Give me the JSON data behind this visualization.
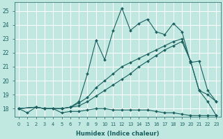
{
  "xlabel": "Humidex (Indice chaleur)",
  "bg_color": "#c0e8e0",
  "grid_color": "#ffffff",
  "line_color": "#1a6060",
  "xlim": [
    -0.5,
    23.5
  ],
  "ylim": [
    17.4,
    25.6
  ],
  "yticks": [
    18,
    19,
    20,
    21,
    22,
    23,
    24,
    25
  ],
  "xticks": [
    0,
    1,
    2,
    3,
    4,
    5,
    6,
    7,
    8,
    9,
    10,
    11,
    12,
    13,
    14,
    15,
    16,
    17,
    18,
    19,
    20,
    21,
    22,
    23
  ],
  "series": [
    {
      "x": [
        0,
        1,
        2,
        3,
        4,
        5,
        6,
        7,
        8,
        9,
        10,
        11,
        12,
        13,
        14,
        15,
        16,
        17,
        18,
        19,
        20,
        21,
        22,
        23
      ],
      "y": [
        18.0,
        17.7,
        18.1,
        18.0,
        18.0,
        17.7,
        17.8,
        17.8,
        17.9,
        18.0,
        18.0,
        17.9,
        17.9,
        17.9,
        17.9,
        17.9,
        17.8,
        17.7,
        17.7,
        17.6,
        17.5,
        17.5,
        17.5,
        17.5
      ]
    },
    {
      "x": [
        0,
        2,
        3,
        4,
        5,
        6,
        7,
        8,
        9,
        10,
        11,
        12,
        13,
        14,
        15,
        16,
        17,
        18,
        19,
        20,
        21,
        22,
        23
      ],
      "y": [
        18.0,
        18.1,
        18.0,
        18.0,
        18.0,
        18.1,
        18.2,
        18.5,
        18.9,
        19.3,
        19.7,
        20.1,
        20.5,
        21.0,
        21.4,
        21.8,
        22.2,
        22.5,
        22.8,
        21.4,
        19.3,
        18.5,
        17.5
      ]
    },
    {
      "x": [
        0,
        2,
        3,
        5,
        6,
        7,
        8,
        9,
        10,
        11,
        12,
        13,
        14,
        15,
        16,
        17,
        18,
        19,
        20,
        21,
        22,
        23
      ],
      "y": [
        18.0,
        18.1,
        18.0,
        18.0,
        18.1,
        18.4,
        18.8,
        19.5,
        20.0,
        20.5,
        21.0,
        21.3,
        21.6,
        21.9,
        22.2,
        22.5,
        22.8,
        23.0,
        21.4,
        19.3,
        19.0,
        18.5
      ]
    },
    {
      "x": [
        0,
        2,
        3,
        5,
        6,
        7,
        8,
        9,
        10,
        11,
        12,
        13,
        14,
        15,
        16,
        17,
        18,
        19,
        20,
        21,
        22,
        23
      ],
      "y": [
        18.0,
        18.1,
        18.0,
        18.0,
        18.1,
        18.5,
        20.5,
        22.9,
        21.5,
        23.6,
        25.2,
        23.6,
        24.1,
        24.4,
        23.5,
        23.3,
        24.1,
        23.5,
        21.3,
        21.4,
        19.3,
        18.5
      ]
    }
  ]
}
